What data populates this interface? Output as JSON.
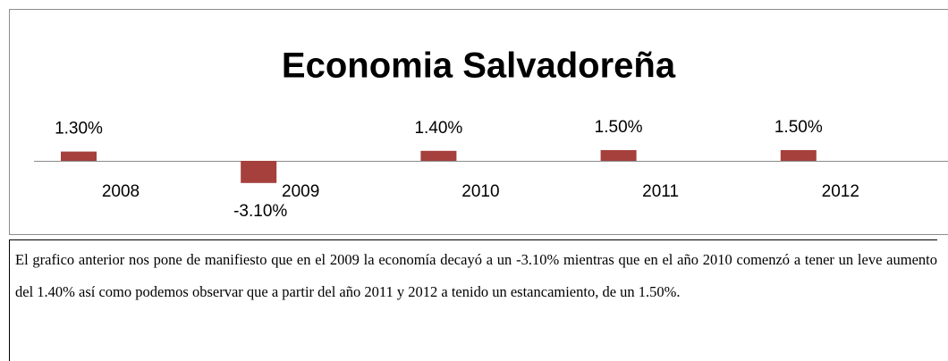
{
  "chart_data": {
    "type": "bar",
    "title": "Economia Salvadoreña",
    "categories": [
      "2008",
      "2009",
      "2010",
      "2011",
      "2012"
    ],
    "values": [
      1.3,
      -3.1,
      1.4,
      1.5,
      1.5
    ],
    "value_labels": [
      "1.30%",
      "-3.10%",
      "1.40%",
      "1.50%",
      "1.50%"
    ],
    "color": "#a5403d"
  },
  "paragraph": "El grafico anterior nos pone de manifiesto que en el 2009 la economía decayó a un -3.10%  mientras que en el año 2010 comenzó a tener un leve aumento del 1.40% así como podemos observar que a partir del año 2011 y 2012 a tenido un estancamiento, de un 1.50%."
}
